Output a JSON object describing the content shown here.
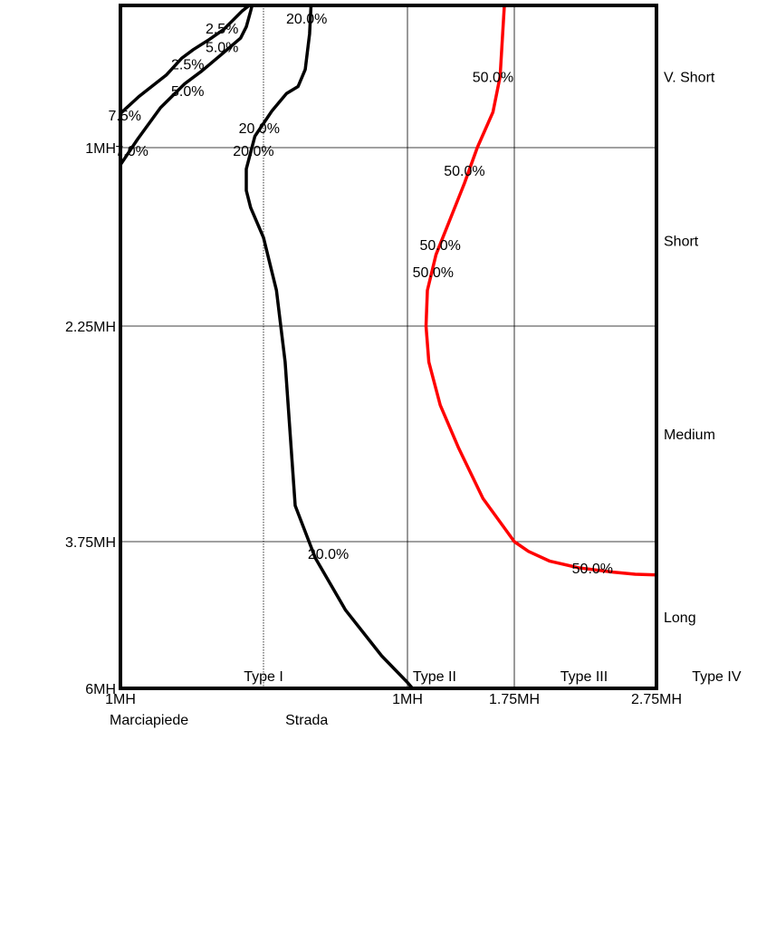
{
  "chart_data": {
    "type": "line",
    "title": "",
    "xlabel": "",
    "ylabel": "",
    "x_ticks": [
      {
        "label": "1MH",
        "x": -1
      },
      {
        "label": "1MH",
        "x": 1
      },
      {
        "label": "1.75MH",
        "x": 1.75
      },
      {
        "label": "2.75MH",
        "x": 2.75
      }
    ],
    "x_region_labels": [
      {
        "label": "Marciapiede",
        "x": -0.8
      },
      {
        "label": "Strada",
        "x": 0.3
      }
    ],
    "y_ticks": [
      {
        "label": "1MH",
        "y": 1
      },
      {
        "label": "2.25MH",
        "y": 2.25
      },
      {
        "label": "3.75MH",
        "y": 3.75
      },
      {
        "label": "6MH",
        "y": 6
      }
    ],
    "right_labels": [
      {
        "label": "V. Short",
        "y": 0.5
      },
      {
        "label": "Short",
        "y": 1.65
      },
      {
        "label": "Medium",
        "y": 3.0
      },
      {
        "label": "Long",
        "y": 4.9
      }
    ],
    "type_labels": [
      {
        "label": "Type I",
        "x": 0
      },
      {
        "label": "Type II",
        "x": 1.19
      },
      {
        "label": "Type III",
        "x": 2.24
      },
      {
        "label": "Type IV",
        "x": 3.0
      }
    ],
    "xlim": [
      -1,
      2.75
    ],
    "ylim": [
      0,
      6
    ],
    "gridlines_x": [
      1,
      1.75
    ],
    "gridlines_y": [
      1,
      2.25,
      3.75
    ],
    "dotted_line_x": 0,
    "series": [
      {
        "color": "#000000",
        "points": [
          [
            -1,
            0.76
          ],
          [
            -0.87,
            0.64
          ],
          [
            -0.68,
            0.49
          ],
          [
            -0.57,
            0.37
          ],
          [
            -0.49,
            0.31
          ],
          [
            -0.38,
            0.24
          ],
          [
            -0.28,
            0.17
          ],
          [
            -0.15,
            0.04
          ],
          [
            -0.1,
            0
          ]
        ],
        "labels": [
          {
            "text": "2.5%",
            "x": -0.53,
            "y": 0.41
          },
          {
            "text": "2.5%",
            "x": -0.29,
            "y": 0.16
          },
          {
            "text": "7.5%",
            "x": -0.97,
            "y": 0.77
          }
        ]
      },
      {
        "color": "#000000",
        "points": [
          [
            -1,
            1.12
          ],
          [
            -0.88,
            0.94
          ],
          [
            -0.72,
            0.72
          ],
          [
            -0.55,
            0.55
          ],
          [
            -0.43,
            0.46
          ],
          [
            -0.3,
            0.35
          ],
          [
            -0.16,
            0.23
          ],
          [
            -0.12,
            0.15
          ],
          [
            -0.09,
            0.04
          ],
          [
            -0.08,
            0
          ]
        ],
        "labels": [
          {
            "text": "5.0%",
            "x": -0.53,
            "y": 0.6
          },
          {
            "text": "5.0%",
            "x": -0.29,
            "y": 0.29
          },
          {
            "text": "7.0%",
            "x": -0.92,
            "y": 1.02
          }
        ]
      },
      {
        "color": "#000000",
        "points": [
          [
            0.33,
            0
          ],
          [
            0.32,
            0.2
          ],
          [
            0.29,
            0.45
          ],
          [
            0.24,
            0.57
          ],
          [
            0.16,
            0.62
          ],
          [
            0.06,
            0.74
          ],
          [
            -0.06,
            0.92
          ],
          [
            -0.12,
            1.15
          ],
          [
            -0.12,
            1.3
          ],
          [
            -0.09,
            1.42
          ],
          [
            0,
            1.63
          ],
          [
            0.09,
            2
          ],
          [
            0.15,
            2.5
          ],
          [
            0.22,
            3.5
          ],
          [
            0.36,
            4
          ],
          [
            0.57,
            4.8
          ],
          [
            0.82,
            5.5
          ],
          [
            1,
            5.91
          ],
          [
            1.23,
            6.5
          ]
        ],
        "labels": [
          {
            "text": "20.0%",
            "x": 0.3,
            "y": 0.09
          },
          {
            "text": "20.0%",
            "x": -0.03,
            "y": 0.86
          },
          {
            "text": "20.0%",
            "x": -0.07,
            "y": 1.02
          },
          {
            "text": "20.0%",
            "x": 0.45,
            "y": 3.93
          }
        ]
      },
      {
        "color": "#ff0000",
        "points": [
          [
            1.68,
            0
          ],
          [
            1.65,
            0.5
          ],
          [
            1.6,
            0.75
          ],
          [
            1.49,
            1.0
          ],
          [
            1.4,
            1.25
          ],
          [
            1.2,
            1.75
          ],
          [
            1.14,
            2.0
          ],
          [
            1.13,
            2.25
          ],
          [
            1.15,
            2.5
          ],
          [
            1.23,
            2.8
          ],
          [
            1.36,
            3.1
          ],
          [
            1.53,
            3.45
          ],
          [
            1.75,
            3.75
          ],
          [
            1.85,
            3.9
          ],
          [
            2.0,
            4.05
          ],
          [
            2.2,
            4.15
          ],
          [
            2.45,
            4.22
          ],
          [
            2.6,
            4.25
          ],
          [
            2.75,
            4.26
          ]
        ],
        "labels": [
          {
            "text": "50.0%",
            "x": 1.6,
            "y": 0.5
          },
          {
            "text": "50.0%",
            "x": 1.4,
            "y": 1.16
          },
          {
            "text": "50.0%",
            "x": 1.23,
            "y": 1.68
          },
          {
            "text": "50.0%",
            "x": 1.18,
            "y": 1.87
          },
          {
            "text": "50.0%",
            "x": 2.3,
            "y": 4.15
          }
        ]
      }
    ]
  }
}
